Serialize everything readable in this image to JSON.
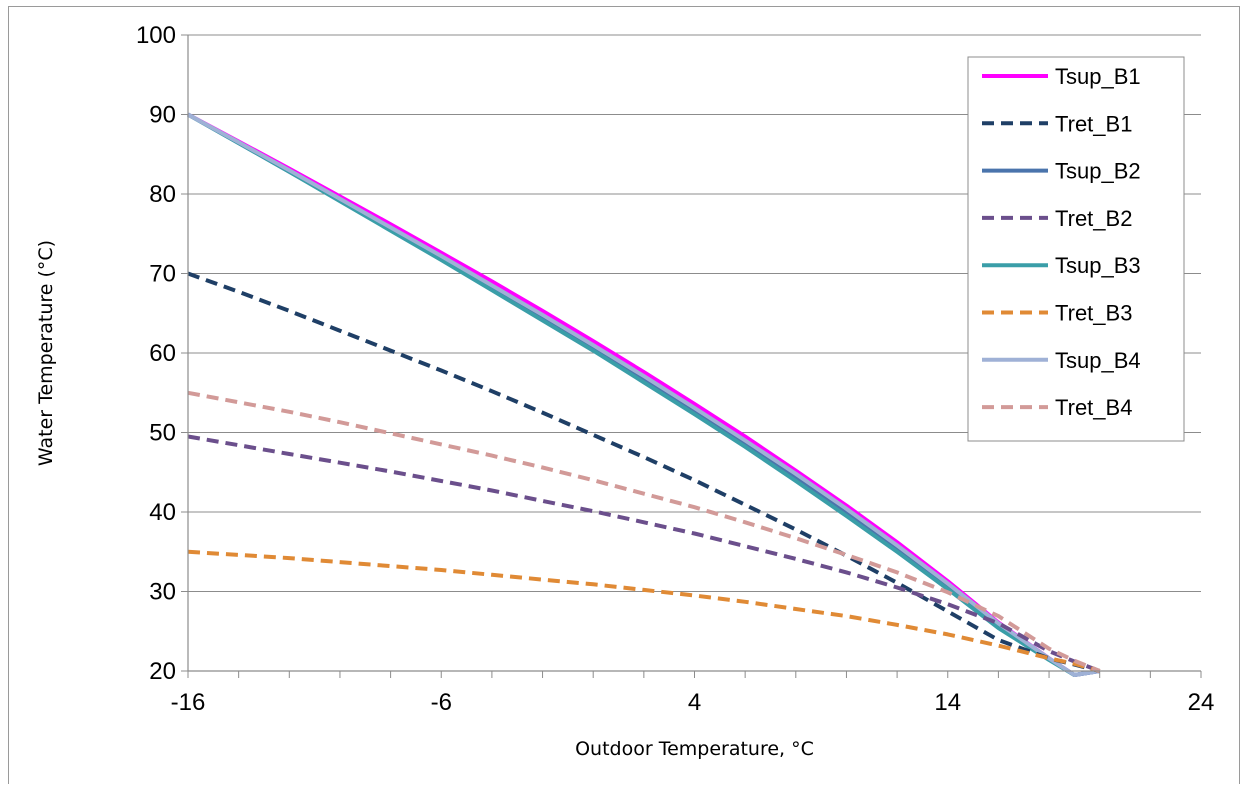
{
  "chart_data": {
    "type": "line",
    "xlabel": "Outdoor Temperature, °C",
    "ylabel": "Water Temperature (°C)",
    "xlim": [
      -16,
      24
    ],
    "ylim": [
      20,
      100
    ],
    "x_ticks": [
      -16,
      -6,
      4,
      14,
      24
    ],
    "x_tick_labels": [
      "-16",
      "-6",
      "4",
      "14",
      "24"
    ],
    "x_minor_step": 2,
    "y_ticks": [
      20,
      30,
      40,
      50,
      60,
      70,
      80,
      90,
      100
    ],
    "y_tick_labels": [
      "20",
      "30",
      "40",
      "50",
      "60",
      "70",
      "80",
      "90",
      "100"
    ],
    "grid": "horizontal major",
    "legend_position": "top-right",
    "x": [
      -16,
      -14,
      -12,
      -10,
      -8,
      -6,
      -4,
      -2,
      0,
      2,
      4,
      6,
      8,
      10,
      12,
      14,
      16,
      18,
      19,
      20
    ],
    "series": [
      {
        "name": "Tsup_B1",
        "color": "#ff00ff",
        "dash": "solid",
        "values": [
          90,
          86.6,
          83.2,
          79.7,
          76.2,
          72.6,
          69.0,
          65.3,
          61.5,
          57.6,
          53.6,
          49.5,
          45.2,
          40.8,
          36.2,
          31.3,
          26.1,
          21.6,
          19.5,
          20
        ]
      },
      {
        "name": "Tret_B1",
        "color": "#1f3f66",
        "dash": "dashed",
        "values": [
          70,
          67.7,
          65.3,
          62.8,
          60.3,
          57.8,
          55.2,
          52.5,
          49.7,
          46.9,
          44.0,
          40.9,
          37.8,
          34.5,
          31.1,
          27.5,
          23.9,
          21.6,
          20.8,
          20
        ]
      },
      {
        "name": "Tsup_B2",
        "color": "#4a74ac",
        "dash": "solid",
        "values": [
          90,
          86.4,
          82.8,
          79.2,
          75.6,
          71.9,
          68.2,
          64.4,
          60.6,
          56.7,
          52.7,
          48.6,
          44.4,
          40.0,
          35.5,
          30.8,
          25.8,
          21.5,
          19.5,
          20
        ]
      },
      {
        "name": "Tret_B2",
        "color": "#6b4f8c",
        "dash": "dashed",
        "values": [
          49.5,
          48.4,
          47.3,
          46.2,
          45.1,
          43.9,
          42.7,
          41.4,
          40.1,
          38.7,
          37.3,
          35.7,
          34.1,
          32.4,
          30.5,
          28.4,
          26.0,
          22.5,
          21.2,
          20
        ]
      },
      {
        "name": "Tsup_B3",
        "color": "#3a9ea8",
        "dash": "solid",
        "values": [
          90,
          86.4,
          82.8,
          79.1,
          75.4,
          71.7,
          67.9,
          64.1,
          60.3,
          56.3,
          52.3,
          48.2,
          43.9,
          39.5,
          35.0,
          30.3,
          25.4,
          21.4,
          19.5,
          20
        ]
      },
      {
        "name": "Tret_B3",
        "color": "#e08a35",
        "dash": "dashed",
        "values": [
          35,
          34.6,
          34.2,
          33.7,
          33.2,
          32.7,
          32.1,
          31.5,
          30.9,
          30.2,
          29.5,
          28.7,
          27.8,
          26.9,
          25.8,
          24.6,
          23.2,
          21.6,
          20.9,
          20
        ]
      },
      {
        "name": "Tsup_B4",
        "color": "#9fb1d6",
        "dash": "solid",
        "values": [
          90,
          86.5,
          83.0,
          79.4,
          75.8,
          72.2,
          68.5,
          64.8,
          61.0,
          57.1,
          53.1,
          49.0,
          44.8,
          40.4,
          35.8,
          31.0,
          26.0,
          21.6,
          19.5,
          20
        ]
      },
      {
        "name": "Tret_B4",
        "color": "#d29a98",
        "dash": "dashed",
        "values": [
          55,
          53.8,
          52.6,
          51.3,
          49.9,
          48.5,
          47.1,
          45.6,
          44.0,
          42.3,
          40.6,
          38.7,
          36.7,
          34.6,
          32.4,
          29.9,
          26.9,
          22.8,
          21.3,
          20
        ]
      }
    ]
  }
}
